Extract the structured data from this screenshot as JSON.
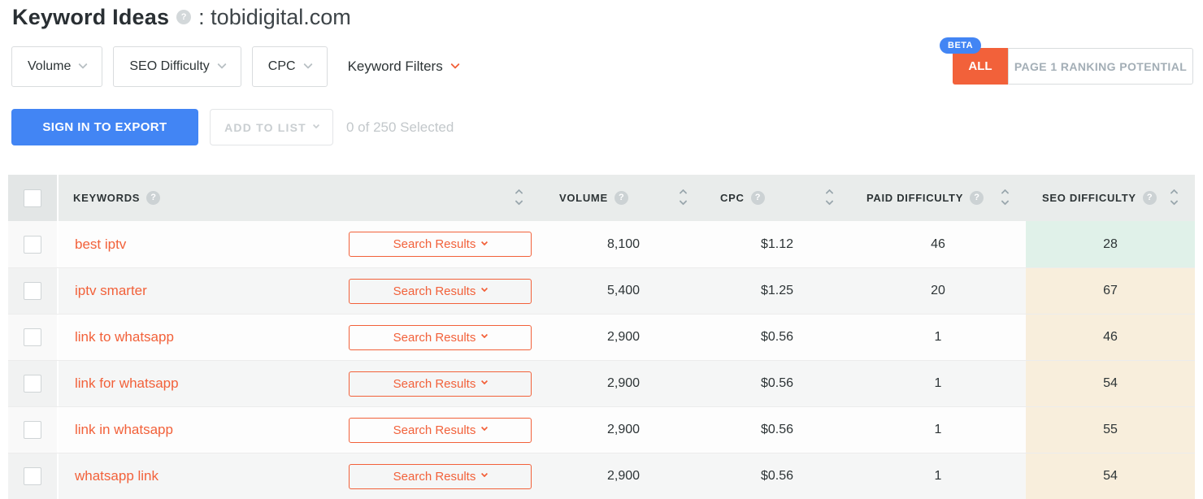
{
  "page": {
    "title": "Keyword Ideas",
    "domain": ": tobidigital.com"
  },
  "icons": {
    "help": "?"
  },
  "filters": {
    "volume_label": "Volume",
    "seo_difficulty_label": "SEO Difficulty",
    "cpc_label": "CPC",
    "keyword_filters_label": "Keyword Filters"
  },
  "view_toggle": {
    "beta_badge": "BETA",
    "all_label": "ALL",
    "page1_label": "PAGE 1 RANKING POTENTIAL"
  },
  "actions": {
    "sign_in_to_export": "SIGN IN TO EXPORT",
    "add_to_list": "ADD TO LIST",
    "selected_status": "0 of 250 Selected"
  },
  "table": {
    "headers": {
      "keywords": "KEYWORDS",
      "volume": "VOLUME",
      "cpc": "CPC",
      "paid_difficulty": "PAID DIFFICULTY",
      "seo_difficulty": "SEO DIFFICULTY"
    },
    "search_results_label": "Search Results",
    "rows": [
      {
        "keyword": "best iptv",
        "volume": "8,100",
        "cpc": "$1.12",
        "paid_difficulty": "46",
        "seo_difficulty": "28",
        "seo_level": "easy"
      },
      {
        "keyword": "iptv smarter",
        "volume": "5,400",
        "cpc": "$1.25",
        "paid_difficulty": "20",
        "seo_difficulty": "67",
        "seo_level": "medium"
      },
      {
        "keyword": "link to whatsapp",
        "volume": "2,900",
        "cpc": "$0.56",
        "paid_difficulty": "1",
        "seo_difficulty": "46",
        "seo_level": "medium"
      },
      {
        "keyword": "link for whatsapp",
        "volume": "2,900",
        "cpc": "$0.56",
        "paid_difficulty": "1",
        "seo_difficulty": "54",
        "seo_level": "medium"
      },
      {
        "keyword": "link in whatsapp",
        "volume": "2,900",
        "cpc": "$0.56",
        "paid_difficulty": "1",
        "seo_difficulty": "55",
        "seo_level": "medium"
      },
      {
        "keyword": "whatsapp link",
        "volume": "2,900",
        "cpc": "$0.56",
        "paid_difficulty": "1",
        "seo_difficulty": "54",
        "seo_level": "medium"
      }
    ]
  },
  "colors": {
    "accent_orange": "#f2613a",
    "accent_blue": "#4285f4",
    "seo_easy_bg": "#e0f1e9",
    "seo_medium_bg": "#f8eedc"
  }
}
